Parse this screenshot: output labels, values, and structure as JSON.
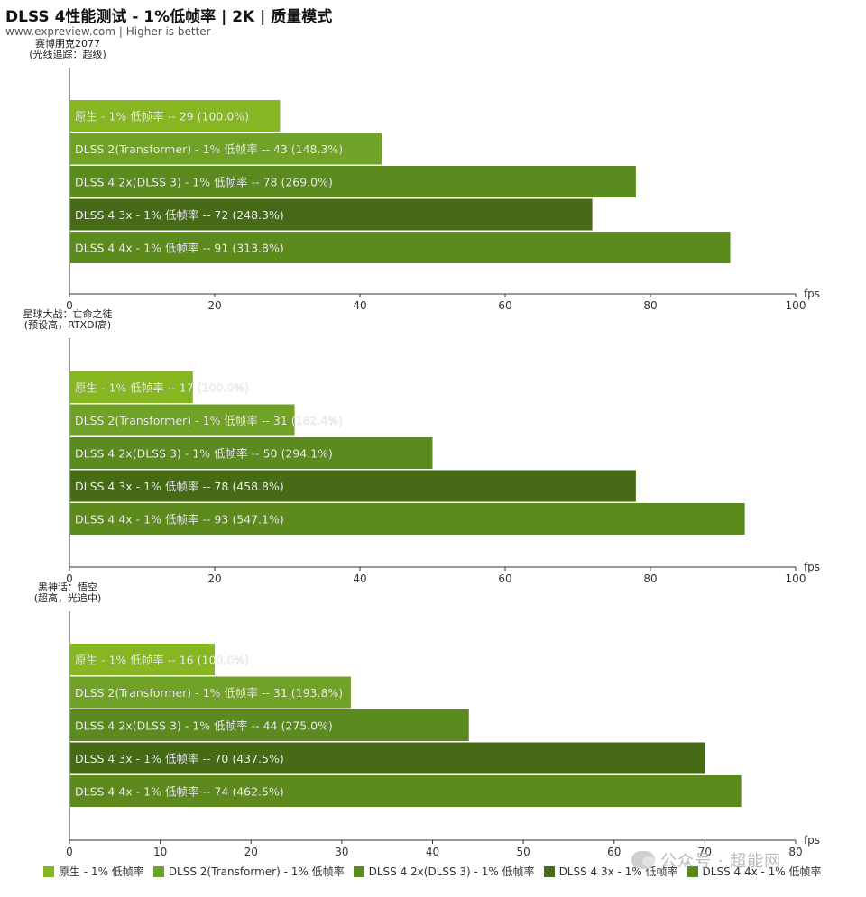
{
  "header": {
    "title": "DLSS 4性能测试 - 1%低帧率 | 2K | 质量模式",
    "subtitle": "www.expreview.com | Higher is better"
  },
  "colors": {
    "series": [
      "#86b622",
      "#6fa226",
      "#5b8a1f",
      "#466a16",
      "#5d8a1d"
    ],
    "axis": "#333333",
    "bar_label": "#ffffff"
  },
  "legend": [
    "原生 -  1% 低帧率",
    "DLSS 2(Transformer) - 1% 低帧率",
    "DLSS 4 2x(DLSS 3)  - 1% 低帧率",
    "DLSS 4 3x  - 1% 低帧率",
    "DLSS 4 4x  - 1% 低帧率"
  ],
  "watermark": "公众号 · 超能网",
  "chart_data": [
    {
      "type": "bar",
      "orientation": "horizontal",
      "group_label": [
        "赛博朋克2077",
        "(光线追踪：超级)"
      ],
      "xlabel": "fps",
      "xlim": [
        0,
        100
      ],
      "xticks": [
        0,
        20,
        40,
        60,
        80,
        100
      ],
      "values": [
        29,
        43,
        78,
        72,
        91
      ],
      "bar_labels": [
        "原生 -  1% 低帧率  --  29 (100.0%)",
        "DLSS 2(Transformer) - 1% 低帧率  --  43 (148.3%)",
        "DLSS 4 2x(DLSS 3)  - 1% 低帧率  --  78 (269.0%)",
        "DLSS 4 3x  - 1% 低帧率  --  72 (248.3%)",
        "DLSS 4 4x  - 1% 低帧率  --  91 (313.8%)"
      ]
    },
    {
      "type": "bar",
      "orientation": "horizontal",
      "group_label": [
        "星球大战：亡命之徒",
        "(预设高，RTXDI高)"
      ],
      "xlabel": "fps",
      "xlim": [
        0,
        100
      ],
      "xticks": [
        0,
        20,
        40,
        60,
        80,
        100
      ],
      "values": [
        17,
        31,
        50,
        78,
        93
      ],
      "bar_labels": [
        "原生 -  1% 低帧率  --  17 (100.0%)",
        "DLSS 2(Transformer) - 1% 低帧率  --  31 (182.4%)",
        "DLSS 4 2x(DLSS 3)  - 1% 低帧率  --  50 (294.1%)",
        "DLSS 4 3x  - 1% 低帧率  --  78 (458.8%)",
        "DLSS 4 4x  - 1% 低帧率  --  93 (547.1%)"
      ]
    },
    {
      "type": "bar",
      "orientation": "horizontal",
      "group_label": [
        "黑神话：悟空",
        "(超高，光追中)"
      ],
      "xlabel": "fps",
      "xlim": [
        0,
        80
      ],
      "xticks": [
        0,
        10,
        20,
        30,
        40,
        50,
        60,
        70,
        80
      ],
      "values": [
        16,
        31,
        44,
        70,
        74
      ],
      "bar_labels": [
        "原生 -  1% 低帧率  --  16 (100.0%)",
        "DLSS 2(Transformer) - 1% 低帧率  --  31 (193.8%)",
        "DLSS 4 2x(DLSS 3)  - 1% 低帧率  --  44 (275.0%)",
        "DLSS 4 3x  - 1% 低帧率  --  70 (437.5%)",
        "DLSS 4 4x  - 1% 低帧率  --  74 (462.5%)"
      ]
    }
  ]
}
